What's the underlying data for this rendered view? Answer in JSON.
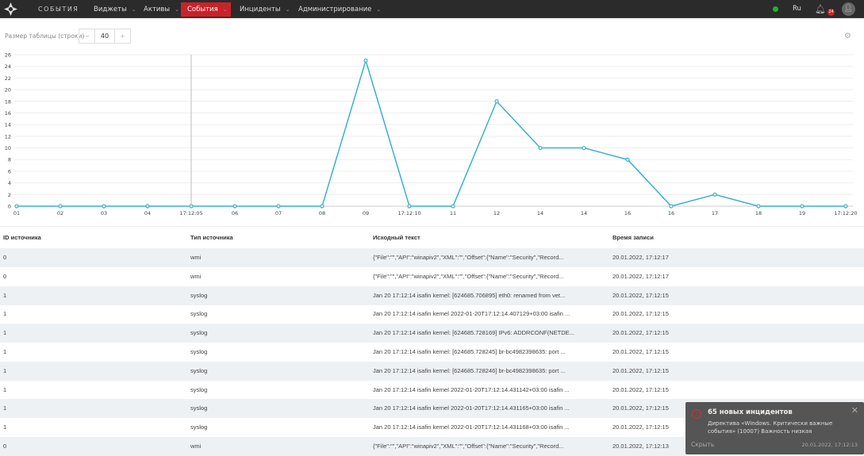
{
  "header": {
    "brand": "СОБЫТИЯ",
    "nav": [
      {
        "label": "Виджеты"
      },
      {
        "label": "Активы"
      },
      {
        "label": "События",
        "active": true
      },
      {
        "label": "Инциденты"
      },
      {
        "label": "Администрирование"
      }
    ],
    "lang": "Ru",
    "notification_count": "24",
    "status_color": "#1cb627",
    "accent": "#c8232a"
  },
  "toolbar": {
    "table_size_label": "Размер таблицы (строки)",
    "table_size_value": "40",
    "minus": "−",
    "plus": "+"
  },
  "chart_data": {
    "type": "line",
    "x": [
      "01",
      "02",
      "03",
      "04",
      "17:12:05",
      "06",
      "07",
      "08",
      "09",
      "17:12:10",
      "11",
      "12",
      "14",
      "14",
      "16",
      "16",
      "17",
      "18",
      "19",
      "17:12:20"
    ],
    "values": [
      0,
      0,
      0,
      0,
      0,
      0,
      0,
      0,
      25,
      0,
      0,
      18,
      10,
      10,
      8,
      0,
      2,
      0,
      0,
      0
    ],
    "yticks": [
      0,
      2,
      4,
      6,
      8,
      10,
      12,
      14,
      16,
      18,
      20,
      22,
      24,
      26
    ],
    "ylim": [
      0,
      26
    ],
    "color": "#3bb0c9",
    "grid": true
  },
  "table": {
    "columns": [
      "ID источника",
      "Тип источника",
      "Исходный текст",
      "Время записи"
    ],
    "rows": [
      [
        "0",
        "wmi",
        "{\"File\":\"\",\"API\":\"winapiv2\",\"XML\":\"\",\"Offset\":{\"Name\":\"Security\",\"Record...",
        "20.01.2022, 17:12:17"
      ],
      [
        "0",
        "wmi",
        "{\"File\":\"\",\"API\":\"winapiv2\",\"XML\":\"\",\"Offset\":{\"Name\":\"Security\",\"Record...",
        "20.01.2022, 17:12:17"
      ],
      [
        "1",
        "syslog",
        "Jan 20 17:12:14 isafin kernel: [624685.706895] eth0: renamed from vet...",
        "20.01.2022, 17:12:15"
      ],
      [
        "1",
        "syslog",
        "Jan 20 17:12:14 isafin kernel 2022-01-20T17:12:14.407129+03:00 isafin ...",
        "20.01.2022, 17:12:15"
      ],
      [
        "1",
        "syslog",
        "Jan 20 17:12:14 isafin kernel: [624685.728169] IPv6: ADDRCONF(NETDE...",
        "20.01.2022, 17:12:15"
      ],
      [
        "1",
        "syslog",
        "Jan 20 17:12:14 isafin kernel: [624685.728245] br-bc4982398635: port ...",
        "20.01.2022, 17:12:15"
      ],
      [
        "1",
        "syslog",
        "Jan 20 17:12:14 isafin kernel: [624685.728246] br-bc4982398635: port ...",
        "20.01.2022, 17:12:15"
      ],
      [
        "1",
        "syslog",
        "Jan 20 17:12:14 isafin kernel 2022-01-20T17:12:14.431142+03:00 isafin ...",
        "20.01.2022, 17:12:15"
      ],
      [
        "1",
        "syslog",
        "Jan 20 17:12:14 isafin kernel 2022-01-20T17:12:14.431165+03:00 isafin ...",
        "20.01.2022, 17:12:15"
      ],
      [
        "1",
        "syslog",
        "Jan 20 17:12:14 isafin kernel 2022-01-20T17:12:14.431168+03:00 isafin ...",
        "20.01.2022, 17:12:15"
      ],
      [
        "0",
        "wmi",
        "{\"File\":\"\",\"API\":\"winapiv2\",\"XML\":\"\",\"Offset\":{\"Name\":\"Security\",\"Record...",
        "20.01.2022, 17:12:13"
      ]
    ]
  },
  "toast": {
    "title": "65 новых инцидентов",
    "description": "Директива «Windows. Критически важные события» (10007) Важность низкая",
    "hide": "Скрыть",
    "timestamp": "20.01.2022, 17:12:13",
    "close": "✕",
    "icon": "!"
  }
}
